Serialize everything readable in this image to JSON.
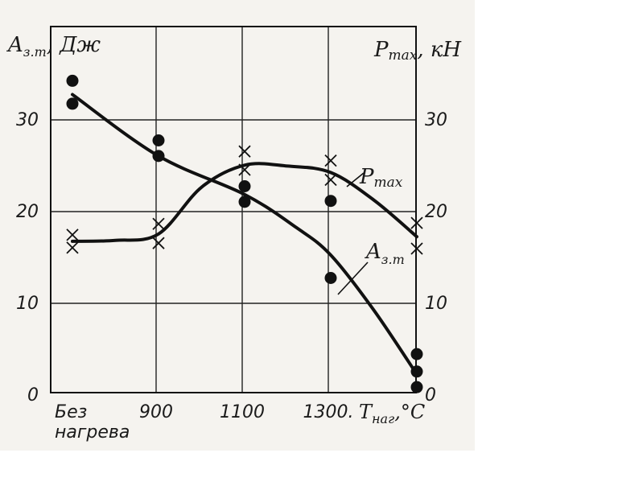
{
  "chart_data": {
    "type": "scatter",
    "left_axis_label": {
      "main": "A",
      "sub": "з.т",
      "unit": ", Дж"
    },
    "right_axis_label": {
      "main": "P",
      "sub": "max",
      "unit": ", кН"
    },
    "x_axis_label": {
      "main": "T",
      "sub": "наг",
      "unit": ",°С"
    },
    "categories": [
      "Без нагрева",
      "900",
      "1100",
      "1300",
      ""
    ],
    "category_labels": [
      [
        "Без",
        "нагрева"
      ],
      [
        "900"
      ],
      [
        "1100"
      ],
      [
        "1300."
      ],
      [
        ""
      ]
    ],
    "y_ticks": [
      "0",
      "10",
      "20",
      "30"
    ],
    "ylim": [
      0,
      35
    ],
    "grid": true,
    "series": [
      {
        "name": "A",
        "name_sub": "з.т",
        "marker": "dot",
        "axis": "left",
        "points": [
          [
            0,
            34
          ],
          [
            0,
            31.5
          ],
          [
            1,
            27.5
          ],
          [
            1,
            25.8
          ],
          [
            2,
            22.5
          ],
          [
            2,
            20.8
          ],
          [
            3,
            20.9
          ],
          [
            3,
            12.5
          ],
          [
            4,
            4.2
          ],
          [
            4,
            2.3
          ],
          [
            4,
            0.6
          ]
        ],
        "curve": [
          [
            0,
            32.5
          ],
          [
            1,
            25.8
          ],
          [
            2,
            21.6
          ],
          [
            2.6,
            18
          ],
          [
            3,
            15
          ],
          [
            3.5,
            9
          ],
          [
            4,
            2
          ]
        ]
      },
      {
        "name": "P",
        "name_sub": "max",
        "marker": "cross",
        "axis": "right",
        "points": [
          [
            0,
            17.2
          ],
          [
            0,
            15.8
          ],
          [
            1,
            18.4
          ],
          [
            1,
            16.3
          ],
          [
            2,
            26.3
          ],
          [
            2,
            24.3
          ],
          [
            3,
            25.3
          ],
          [
            3,
            23.2
          ],
          [
            4,
            18.5
          ],
          [
            4,
            15.7
          ]
        ],
        "curve": [
          [
            0,
            16.5
          ],
          [
            0.5,
            16.6
          ],
          [
            1,
            17.3
          ],
          [
            1.5,
            22.4
          ],
          [
            2,
            24.8
          ],
          [
            2.5,
            24.7
          ],
          [
            3,
            24
          ],
          [
            3.5,
            21
          ],
          [
            4,
            17
          ]
        ]
      }
    ]
  }
}
